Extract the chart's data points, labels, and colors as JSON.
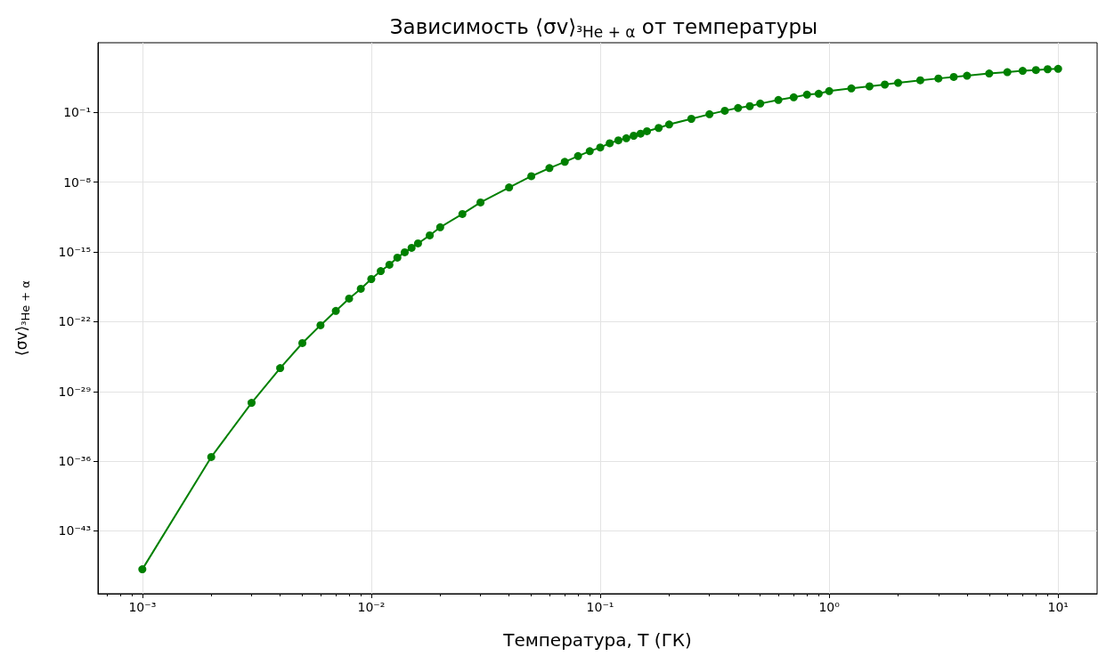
{
  "chart_data": {
    "type": "line",
    "title": "Зависимость ⟨σv⟩$_{³He + α}$ от температуры",
    "xlabel": "Температура, T (ГК)",
    "ylabel": "⟨σv⟩$_{³He + α}$",
    "x": [
      0.001,
      0.002,
      0.003,
      0.004,
      0.005,
      0.006,
      0.007,
      0.008,
      0.009,
      0.01,
      0.011,
      0.012,
      0.013,
      0.014,
      0.015,
      0.016,
      0.018,
      0.02,
      0.025,
      0.03,
      0.04,
      0.05,
      0.06,
      0.07,
      0.08,
      0.09,
      0.1,
      0.11,
      0.12,
      0.13,
      0.14,
      0.15,
      0.16,
      0.18,
      0.2,
      0.25,
      0.3,
      0.35,
      0.4,
      0.45,
      0.5,
      0.6,
      0.7,
      0.8,
      0.9,
      1,
      1.25,
      1.5,
      1.75,
      2,
      2.5,
      3,
      3.5,
      4,
      5,
      6,
      7,
      8,
      9,
      10
    ],
    "series": [
      {
        "color": "#008000",
        "values": [
          1.4e-47,
          2.6e-36,
          7.2e-31,
          2.2e-27,
          7.1e-25,
          4.4e-23,
          1.2e-21,
          2.1e-20,
          2e-19,
          1.9e-18,
          1.2e-17,
          5.2e-17,
          2.7e-16,
          9.3e-16,
          2.6e-15,
          7.2e-15,
          4.6e-14,
          3e-13,
          6.5e-12,
          9.3e-11,
          3e-09,
          4e-08,
          2.6e-07,
          1.1e-06,
          4.2e-06,
          1.3e-05,
          3.1e-05,
          8.1e-05,
          0.00016,
          0.00026,
          0.00046,
          0.00074,
          0.0013,
          0.0028,
          0.0063,
          0.023,
          0.066,
          0.15,
          0.28,
          0.43,
          0.78,
          1.8,
          3.3,
          6.2,
          7.6,
          14,
          26,
          42,
          63,
          95,
          170,
          260,
          370,
          490,
          810,
          1100,
          1500,
          1800,
          2200,
          2400
        ]
      }
    ],
    "log": "xy",
    "xlim": [
      0.00064,
      14.8
    ],
    "ylim": [
      5e-50,
      1000000.0
    ],
    "xticks": [
      {
        "value": 0.001,
        "label": "10⁻³"
      },
      {
        "value": 0.01,
        "label": "10⁻²"
      },
      {
        "value": 0.1,
        "label": "10⁻¹"
      },
      {
        "value": 1,
        "label": "10⁰"
      },
      {
        "value": 10,
        "label": "10¹"
      }
    ],
    "yticks": [
      {
        "value": 1e-43,
        "label": "10⁻⁴³"
      },
      {
        "value": 1e-36,
        "label": "10⁻³⁶"
      },
      {
        "value": 1e-29,
        "label": "10⁻²⁹"
      },
      {
        "value": 1e-22,
        "label": "10⁻²²"
      },
      {
        "value": 1e-15,
        "label": "10⁻¹⁵"
      },
      {
        "value": 1e-08,
        "label": "10⁻⁸"
      },
      {
        "value": 0.1,
        "label": "10⁻¹"
      }
    ],
    "grid": true,
    "marker": "circle",
    "line_style": "solid"
  }
}
